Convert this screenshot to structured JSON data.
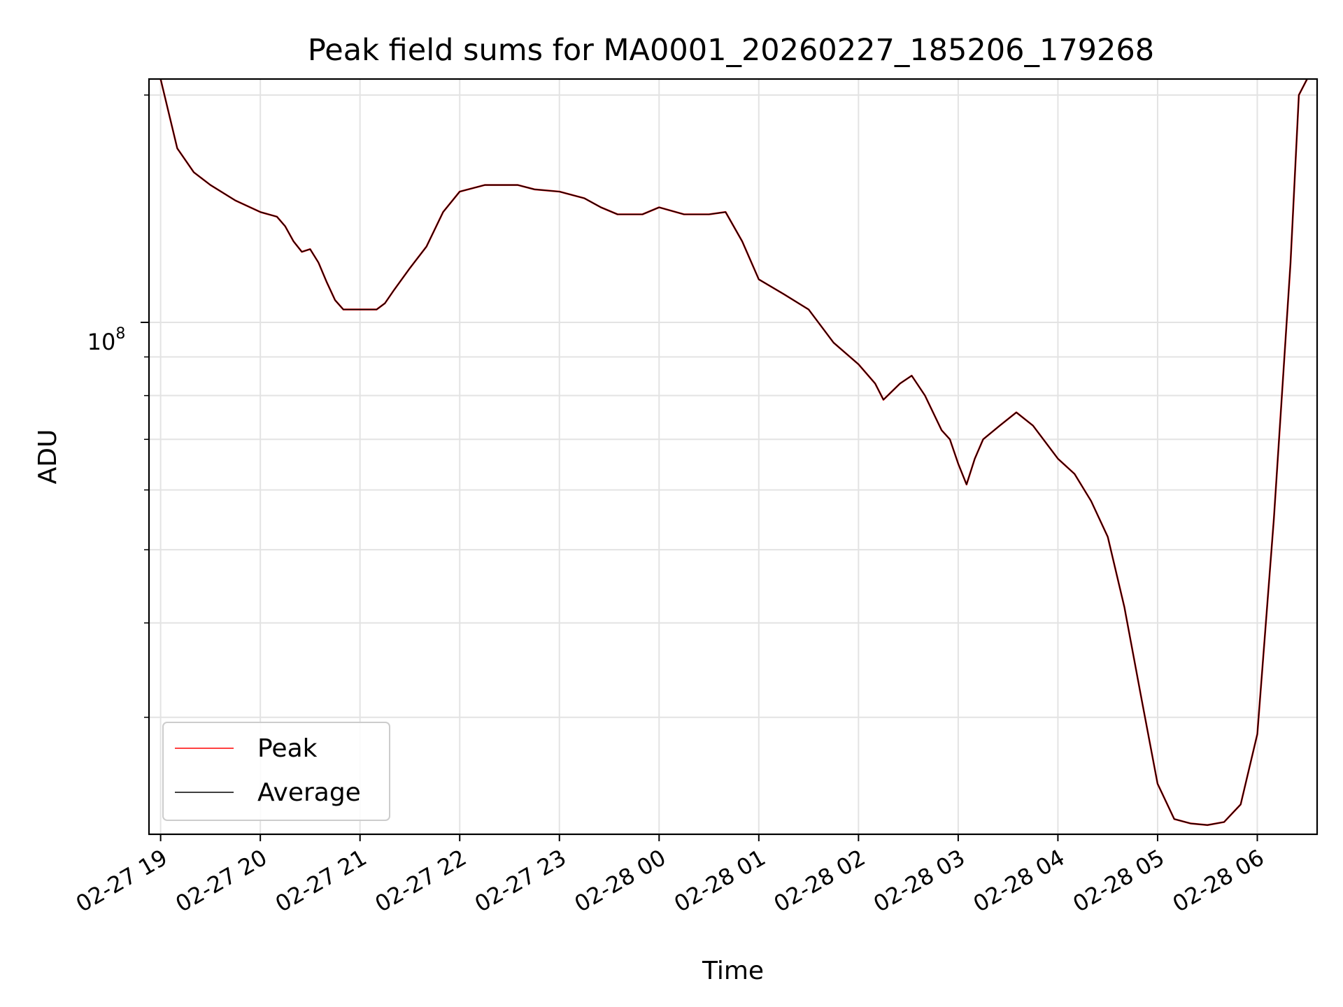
{
  "chart_data": {
    "type": "line",
    "title": "Peak field sums for MA0001_20260227_185206_179268",
    "xlabel": "Time",
    "ylabel": "ADU",
    "y_scale": "log",
    "ylim": [
      21000000,
      210000000
    ],
    "xlim": [
      "2026-02-27 18:53",
      "2026-02-28 06:36"
    ],
    "grid": true,
    "legend_position": "lower-left",
    "x_tick_labels": [
      "02-27 19",
      "02-27 20",
      "02-27 21",
      "02-27 22",
      "02-27 23",
      "02-28 00",
      "02-28 01",
      "02-28 02",
      "02-28 03",
      "02-28 04",
      "02-28 05",
      "02-28 06"
    ],
    "y_tick_label": {
      "base": "10",
      "exponent": "8"
    },
    "series": [
      {
        "name": "Peak",
        "color": "#ff0000"
      },
      {
        "name": "Average",
        "color": "#000000"
      }
    ],
    "x": [
      "2026-02-27 19:00",
      "2026-02-27 19:10",
      "2026-02-27 19:20",
      "2026-02-27 19:30",
      "2026-02-27 19:45",
      "2026-02-27 20:00",
      "2026-02-27 20:10",
      "2026-02-27 20:15",
      "2026-02-27 20:20",
      "2026-02-27 20:25",
      "2026-02-27 20:30",
      "2026-02-27 20:35",
      "2026-02-27 20:40",
      "2026-02-27 20:45",
      "2026-02-27 20:50",
      "2026-02-27 21:00",
      "2026-02-27 21:10",
      "2026-02-27 21:15",
      "2026-02-27 21:20",
      "2026-02-27 21:30",
      "2026-02-27 21:40",
      "2026-02-27 21:50",
      "2026-02-27 22:00",
      "2026-02-27 22:15",
      "2026-02-27 22:35",
      "2026-02-27 22:45",
      "2026-02-27 23:00",
      "2026-02-27 23:15",
      "2026-02-27 23:25",
      "2026-02-27 23:35",
      "2026-02-27 23:50",
      "2026-02-28 00:00",
      "2026-02-28 00:15",
      "2026-02-28 00:30",
      "2026-02-28 00:40",
      "2026-02-28 00:50",
      "2026-02-28 01:00",
      "2026-02-28 01:15",
      "2026-02-28 01:30",
      "2026-02-28 01:45",
      "2026-02-28 02:00",
      "2026-02-28 02:10",
      "2026-02-28 02:15",
      "2026-02-28 02:25",
      "2026-02-28 02:32",
      "2026-02-28 02:40",
      "2026-02-28 02:50",
      "2026-02-28 02:55",
      "2026-02-28 03:00",
      "2026-02-28 03:05",
      "2026-02-28 03:10",
      "2026-02-28 03:15",
      "2026-02-28 03:25",
      "2026-02-28 03:35",
      "2026-02-28 03:45",
      "2026-02-28 04:00",
      "2026-02-28 04:10",
      "2026-02-28 04:20",
      "2026-02-28 04:30",
      "2026-02-28 04:40",
      "2026-02-28 04:50",
      "2026-02-28 05:00",
      "2026-02-28 05:10",
      "2026-02-28 05:20",
      "2026-02-28 05:30",
      "2026-02-28 05:40",
      "2026-02-28 05:50",
      "2026-02-28 06:00",
      "2026-02-28 06:10",
      "2026-02-28 06:20",
      "2026-02-28 06:25",
      "2026-02-28 06:30"
    ],
    "y": [
      210000000,
      170000000,
      158000000,
      152000000,
      145000000,
      140000000,
      138000000,
      134000000,
      128000000,
      124000000,
      125000000,
      120000000,
      113000000,
      107000000,
      104000000,
      104000000,
      104000000,
      106000000,
      110000000,
      118000000,
      126000000,
      140000000,
      149000000,
      152000000,
      152000000,
      150000000,
      149000000,
      146000000,
      142000000,
      139000000,
      139000000,
      142000000,
      139000000,
      139000000,
      140000000,
      128000000,
      114000000,
      109000000,
      104000000,
      94000000,
      88000000,
      83000000,
      79000000,
      83000000,
      85000000,
      80000000,
      72000000,
      70000000,
      65000000,
      61000000,
      66000000,
      70000000,
      73000000,
      76000000,
      73000000,
      66000000,
      63000000,
      58000000,
      52000000,
      42000000,
      32000000,
      24500000,
      22000000,
      21700000,
      21600000,
      21800000,
      23000000,
      28500000,
      55000000,
      120000000,
      200000000,
      210000000
    ]
  }
}
